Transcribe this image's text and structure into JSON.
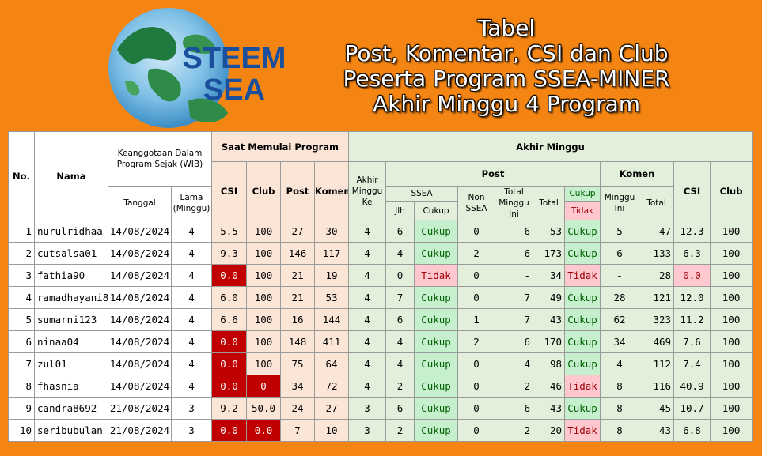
{
  "logo": {
    "line1": "STEEM",
    "line2": "SEA"
  },
  "title": [
    "Tabel",
    "Post, Komentar, CSI dan Club",
    "Peserta Program SSEA-MINER",
    "Akhir Minggu 4 Program"
  ],
  "headers": {
    "no": "No.",
    "nama": "Nama",
    "keanggotaan": "Keanggotaan Dalam Program Sejak (WIB)",
    "tanggal": "Tanggal",
    "lama": "Lama (Minggu)",
    "saat_mulai": "Saat Memulai Program",
    "csi": "CSI",
    "club": "Club",
    "post": "Post",
    "komen_short": "Komen",
    "akhir_minggu": "Akhir Minggu",
    "akhir_minggu_ke": "Akhir Minggu Ke",
    "post_group": "Post",
    "ssea": "SSEA",
    "jlh": "Jlh",
    "cukup": "Cukup",
    "non_ssea": "Non SSEA",
    "total_minggu_ini": "Total Minggu Ini",
    "total": "Total",
    "cukup_legend": "Cukup",
    "tidak_legend": "Tidak",
    "komen": "Komen",
    "minggu_ini": "Minggu Ini",
    "komen_total": "Total",
    "csi_end": "CSI",
    "club_end": "Club"
  },
  "rows": [
    {
      "no": "1",
      "nama": "nurulridhaa",
      "tanggal": "14/08/2024",
      "lama": "4",
      "csi": "5.5",
      "club": "100",
      "post": "27",
      "komen": "30",
      "ke": "4",
      "jlh": "6",
      "cukup": "Cukup",
      "non": "0",
      "tmi": "6",
      "total": "53",
      "status": "Cukup",
      "kmi": "5",
      "ktotal": "47",
      "csi2": "12.3",
      "club2": "100"
    },
    {
      "no": "2",
      "nama": "cutsalsa01",
      "tanggal": "14/08/2024",
      "lama": "4",
      "csi": "9.3",
      "club": "100",
      "post": "146",
      "komen": "117",
      "ke": "4",
      "jlh": "4",
      "cukup": "Cukup",
      "non": "2",
      "tmi": "6",
      "total": "173",
      "status": "Cukup",
      "kmi": "6",
      "ktotal": "133",
      "csi2": "6.3",
      "club2": "100"
    },
    {
      "no": "3",
      "nama": "fathia90",
      "tanggal": "14/08/2024",
      "lama": "4",
      "csi": "0.0",
      "club": "100",
      "post": "21",
      "komen": "19",
      "ke": "4",
      "jlh": "0",
      "cukup": "Tidak",
      "non": "0",
      "tmi": "-",
      "total": "34",
      "status": "Tidak",
      "kmi": "-",
      "ktotal": "28",
      "csi2": "0.0",
      "club2": "100"
    },
    {
      "no": "4",
      "nama": "ramadhayani8",
      "tanggal": "14/08/2024",
      "lama": "4",
      "csi": "6.0",
      "club": "100",
      "post": "21",
      "komen": "53",
      "ke": "4",
      "jlh": "7",
      "cukup": "Cukup",
      "non": "0",
      "tmi": "7",
      "total": "49",
      "status": "Cukup",
      "kmi": "28",
      "ktotal": "121",
      "csi2": "12.0",
      "club2": "100"
    },
    {
      "no": "5",
      "nama": "sumarni123",
      "tanggal": "14/08/2024",
      "lama": "4",
      "csi": "6.6",
      "club": "100",
      "post": "16",
      "komen": "144",
      "ke": "4",
      "jlh": "6",
      "cukup": "Cukup",
      "non": "1",
      "tmi": "7",
      "total": "43",
      "status": "Cukup",
      "kmi": "62",
      "ktotal": "323",
      "csi2": "11.2",
      "club2": "100"
    },
    {
      "no": "6",
      "nama": "ninaa04",
      "tanggal": "14/08/2024",
      "lama": "4",
      "csi": "0.0",
      "club": "100",
      "post": "148",
      "komen": "411",
      "ke": "4",
      "jlh": "4",
      "cukup": "Cukup",
      "non": "2",
      "tmi": "6",
      "total": "170",
      "status": "Cukup",
      "kmi": "34",
      "ktotal": "469",
      "csi2": "7.6",
      "club2": "100"
    },
    {
      "no": "7",
      "nama": "zul01",
      "tanggal": "14/08/2024",
      "lama": "4",
      "csi": "0.0",
      "club": "100",
      "post": "75",
      "komen": "64",
      "ke": "4",
      "jlh": "4",
      "cukup": "Cukup",
      "non": "0",
      "tmi": "4",
      "total": "98",
      "status": "Cukup",
      "kmi": "4",
      "ktotal": "112",
      "csi2": "7.4",
      "club2": "100"
    },
    {
      "no": "8",
      "nama": "fhasnia",
      "tanggal": "14/08/2024",
      "lama": "4",
      "csi": "0.0",
      "club": "0",
      "post": "34",
      "komen": "72",
      "ke": "4",
      "jlh": "2",
      "cukup": "Cukup",
      "non": "0",
      "tmi": "2",
      "total": "46",
      "status": "Tidak",
      "kmi": "8",
      "ktotal": "116",
      "csi2": "40.9",
      "club2": "100"
    },
    {
      "no": "9",
      "nama": "candra8692",
      "tanggal": "21/08/2024",
      "lama": "3",
      "csi": "9.2",
      "club": "50.0",
      "post": "24",
      "komen": "27",
      "ke": "3",
      "jlh": "6",
      "cukup": "Cukup",
      "non": "0",
      "tmi": "6",
      "total": "43",
      "status": "Cukup",
      "kmi": "8",
      "ktotal": "45",
      "csi2": "10.7",
      "club2": "100"
    },
    {
      "no": "10",
      "nama": "seribubulan",
      "tanggal": "21/08/2024",
      "lama": "3",
      "csi": "0.0",
      "club": "0.0",
      "post": "7",
      "komen": "10",
      "ke": "3",
      "jlh": "2",
      "cukup": "Cukup",
      "non": "0",
      "tmi": "2",
      "total": "20",
      "status": "Tidak",
      "kmi": "8",
      "ktotal": "43",
      "csi2": "6.8",
      "club2": "100"
    }
  ],
  "colors": {
    "background": "#f48513",
    "header_peach": "#fbe5d6",
    "header_green": "#e2efda",
    "zero_red": "#c00000",
    "cukup_bg": "#c6efce",
    "tidak_bg": "#ffc7ce"
  }
}
